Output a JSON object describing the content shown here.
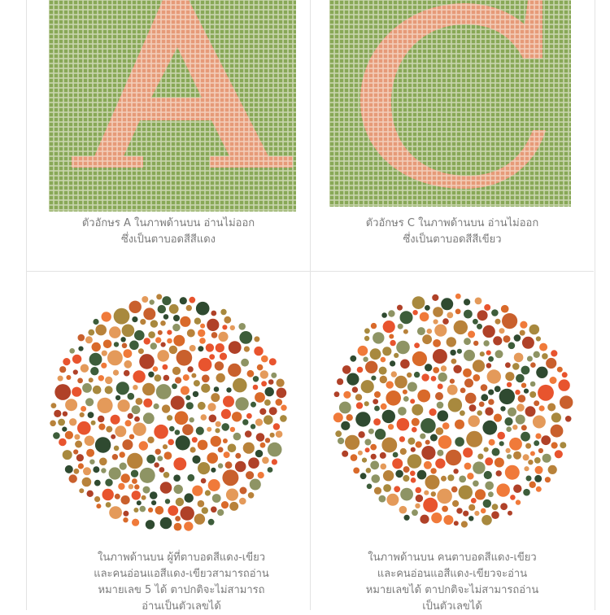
{
  "colors": {
    "grid_green": "#88a857",
    "grid_line": "#c9d5ad",
    "letter_salmon": "#e69a78",
    "caption_text": "#7a7a7a",
    "dot_palette": [
      "#e8542e",
      "#f07a3a",
      "#d96a2a",
      "#c9602d",
      "#b8823a",
      "#a8893e",
      "#3d5d3a",
      "#2f4a30",
      "#8e9464",
      "#e49a5a",
      "#b04128"
    ]
  },
  "panels": [
    {
      "letter": "A",
      "icon": "letter-a-grid-plate",
      "caption_lines": [
        "ตัวอักษร A ในภาพด้านบน อ่านไม่ออก",
        "ซึ่งเป็นตาบอดสีสีแดง"
      ]
    },
    {
      "letter": "C",
      "icon": "letter-c-grid-plate",
      "caption_lines": [
        "ตัวอักษร C ในภาพด้านบน อ่านไม่ออก",
        "ซึ่งเป็นตาบอดสีสีเขียว"
      ]
    },
    {
      "number": "5",
      "icon": "ishihara-dot-plate",
      "caption_lines": [
        "ในภาพด้านบน ผู้ที่ตาบอดสีแดง-เขียว",
        "และคนอ่อนแอสีแดง-เขียวสามารถอ่าน",
        "หมายเลข 5 ได้ ตาปกติจะไม่สามารถ",
        "อ่านเป็นตัวเลขได้"
      ]
    },
    {
      "icon": "ishihara-dot-plate",
      "caption_lines": [
        "ในภาพด้านบน คนตาบอดสีแดง-เขียว",
        "และคนอ่อนแอสีแดง-เขียวจะอ่าน",
        "หมายเลขได้ ตาปกติจะไม่สามารถอ่าน",
        "เป็นตัวเลขได้"
      ]
    }
  ]
}
